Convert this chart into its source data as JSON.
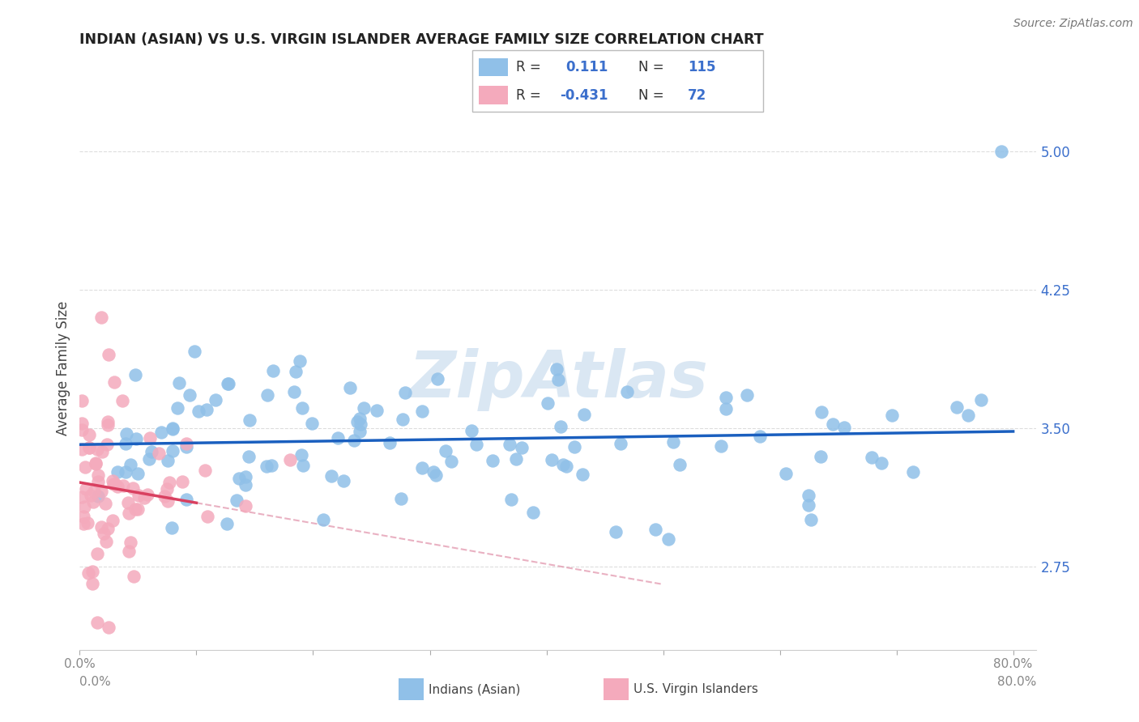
{
  "title": "INDIAN (ASIAN) VS U.S. VIRGIN ISLANDER AVERAGE FAMILY SIZE CORRELATION CHART",
  "source_text": "Source: ZipAtlas.com",
  "watermark": "ZipAtlas",
  "ylabel": "Average Family Size",
  "xlim": [
    0.0,
    0.82
  ],
  "ylim": [
    2.3,
    5.35
  ],
  "yticks": [
    2.75,
    3.5,
    4.25,
    5.0
  ],
  "xticks": [
    0.0,
    0.1,
    0.2,
    0.3,
    0.4,
    0.5,
    0.6,
    0.7,
    0.8
  ],
  "xtick_labels": [
    "0.0%",
    "",
    "",
    "",
    "",
    "",
    "",
    "",
    "80.0%"
  ],
  "blue_color": "#90C0E8",
  "pink_color": "#F4AABC",
  "line_blue": "#1A5FBF",
  "line_pink_solid": "#D94060",
  "line_pink_dash": "#E090A8",
  "text_blue": "#3B6FCC",
  "tick_label_color": "#888888",
  "background_color": "#FFFFFF",
  "grid_color": "#DDDDDD",
  "legend_r1_val": "0.111",
  "legend_n1_val": "115",
  "legend_r2_val": "-0.431",
  "legend_n2_val": "72"
}
